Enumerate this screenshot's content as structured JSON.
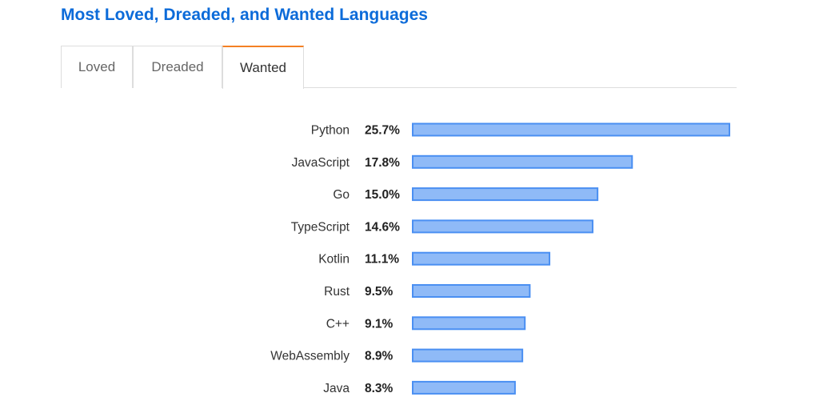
{
  "title": "Most Loved, Dreaded, and Wanted Languages",
  "tabs": [
    {
      "label": "Loved",
      "active": false
    },
    {
      "label": "Dreaded",
      "active": false
    },
    {
      "label": "Wanted",
      "active": true
    }
  ],
  "colors": {
    "title": "#0c6bd9",
    "active_tab_accent": "#f48024",
    "bar_fill": "#8fbaf7",
    "bar_stroke": "#4a8ff2"
  },
  "chart_data": {
    "type": "bar",
    "orientation": "horizontal",
    "categories": [
      "Python",
      "JavaScript",
      "Go",
      "TypeScript",
      "Kotlin",
      "Rust",
      "C++",
      "WebAssembly",
      "Java"
    ],
    "values": [
      25.7,
      17.8,
      15.0,
      14.6,
      11.1,
      9.5,
      9.1,
      8.9,
      8.3
    ],
    "value_labels": [
      "25.7%",
      "17.8%",
      "15.0%",
      "14.6%",
      "11.1%",
      "9.5%",
      "9.1%",
      "8.9%",
      "8.3%"
    ],
    "unit": "%",
    "grid": false,
    "legend": "none"
  }
}
